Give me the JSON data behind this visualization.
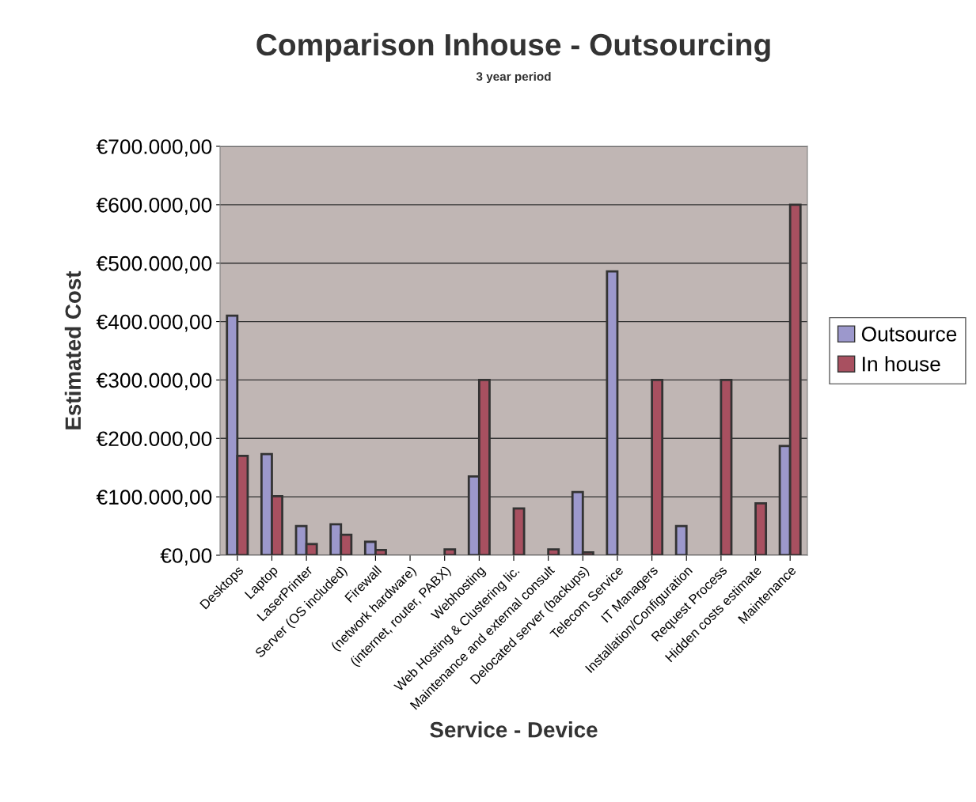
{
  "chart_data": {
    "type": "bar",
    "title": "Comparison Inhouse - Outsourcing",
    "subtitle": "3 year period",
    "xlabel": "Service - Device",
    "ylabel": "Estimated Cost",
    "categories": [
      "Desktops",
      "Laptop",
      "LaserPrinter",
      "Server (OS included)",
      "Firewall",
      "(network hardware)",
      "(internet, router, PABX)",
      "Webhosting",
      "Web Hosting & Clustering lic.",
      "Maintenance and external consult",
      "Delocated server (backups)",
      "Telecom Service",
      "IT Managers",
      "Installation/Configuration",
      "Request Process",
      "Hidden costs estimate",
      "Maintenance"
    ],
    "series": [
      {
        "name": "Outsource",
        "color": "#9c98cc",
        "values": [
          410000,
          173000,
          50000,
          53000,
          23000,
          null,
          null,
          135000,
          null,
          null,
          108000,
          486000,
          null,
          50000,
          null,
          null,
          187000
        ]
      },
      {
        "name": "In house",
        "color": "#a85060",
        "values": [
          170000,
          101000,
          19000,
          35000,
          9000,
          null,
          10000,
          300000,
          80000,
          10000,
          5000,
          null,
          300000,
          null,
          300000,
          89000,
          600000
        ]
      }
    ],
    "ylim": [
      0,
      700000
    ],
    "yticks": [
      {
        "value": 0,
        "label": "€0,00"
      },
      {
        "value": 100000,
        "label": "€100.000,00"
      },
      {
        "value": 200000,
        "label": "€200.000,00"
      },
      {
        "value": 300000,
        "label": "€300.000,00"
      },
      {
        "value": 400000,
        "label": "€400.000,00"
      },
      {
        "value": 500000,
        "label": "€500.000,00"
      },
      {
        "value": 600000,
        "label": "€600.000,00"
      },
      {
        "value": 700000,
        "label": "€700.000,00"
      }
    ],
    "grid": "y",
    "legend": "right"
  }
}
